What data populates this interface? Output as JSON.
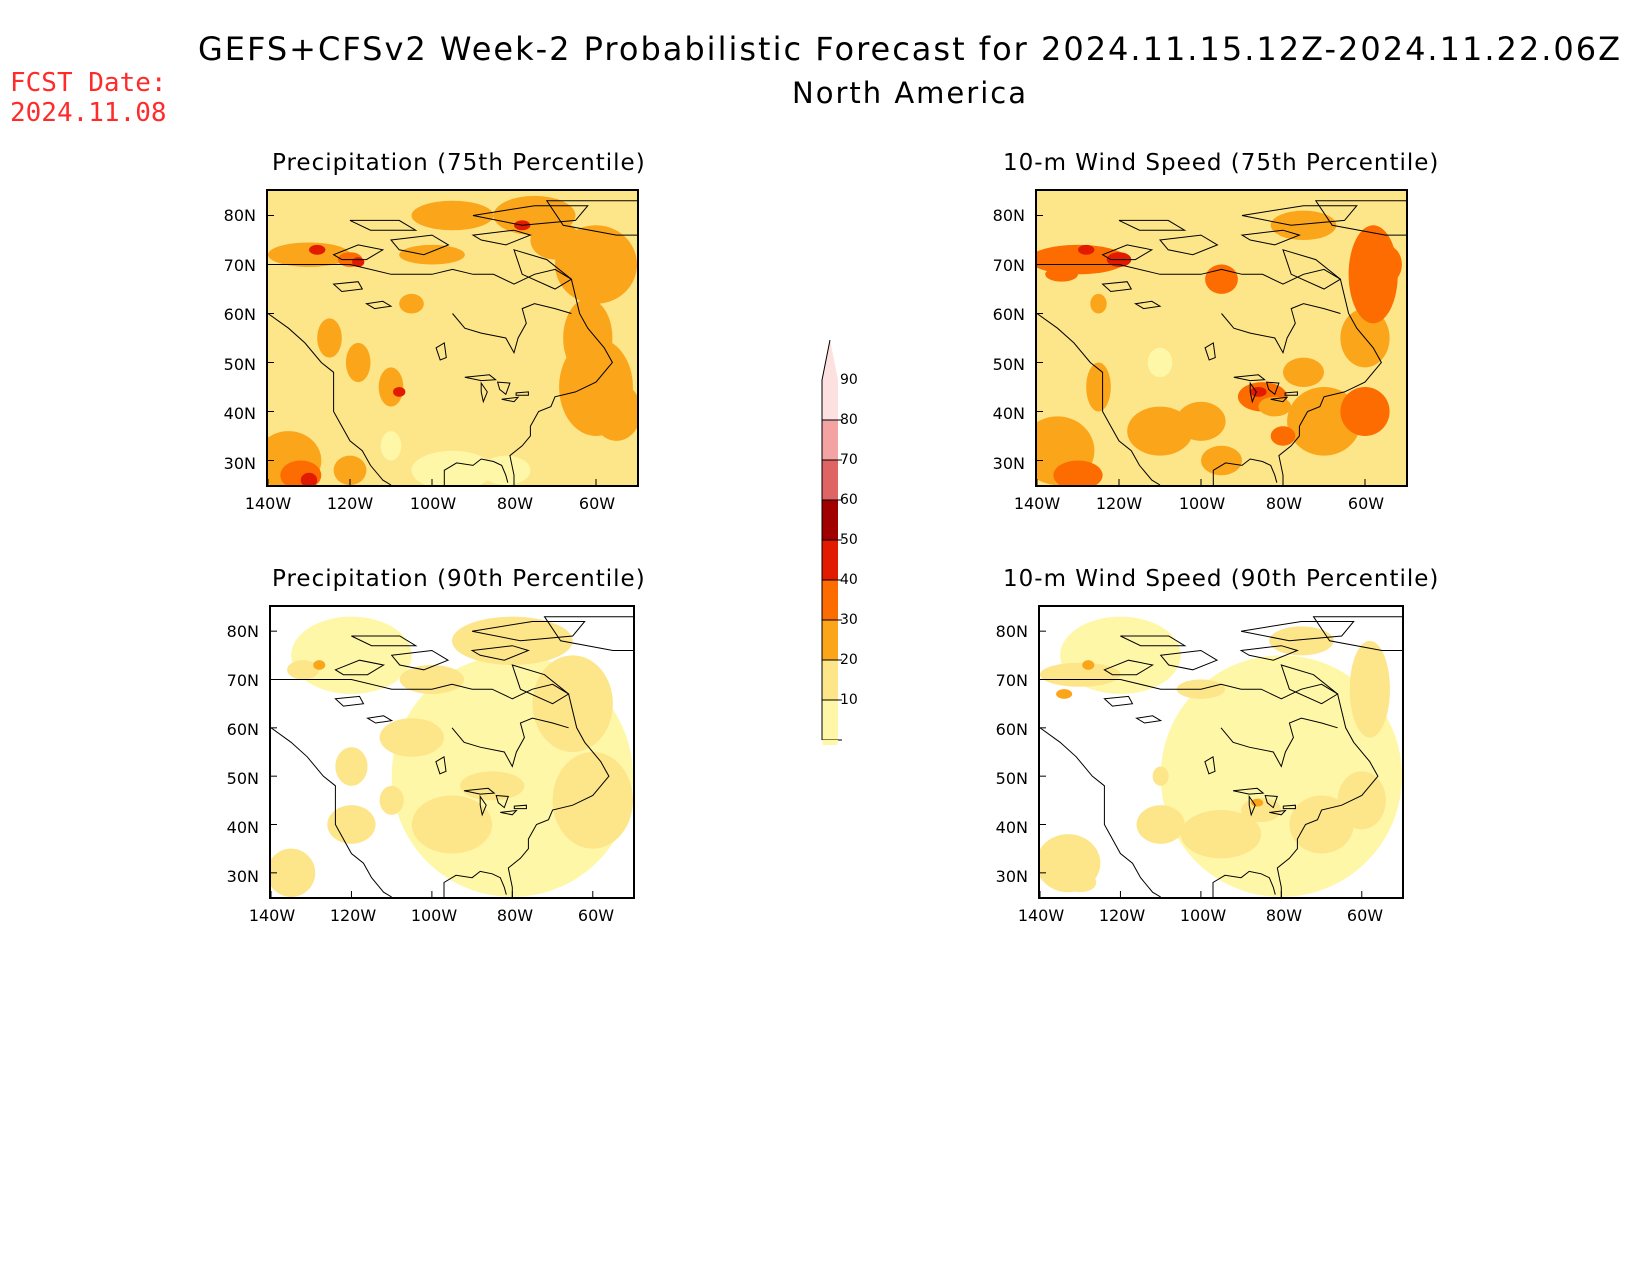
{
  "header": {
    "title": "GEFS+CFSv2 Week-2 Probabilistic Forecast for 2024.11.15.12Z-2024.11.22.06Z",
    "subtitle": "North America",
    "fcst_label": "FCST Date:",
    "fcst_date": "2024.11.08"
  },
  "panels": [
    {
      "id": "precip75",
      "title": "Precipitation (75th Percentile)"
    },
    {
      "id": "wind75",
      "title": "10-m Wind Speed (75th Percentile)"
    },
    {
      "id": "precip90",
      "title": "Precipitation (90th Percentile)"
    },
    {
      "id": "wind90",
      "title": "10-m Wind Speed (90th Percentile)"
    }
  ],
  "axes": {
    "lat_labels": [
      "80N",
      "70N",
      "60N",
      "50N",
      "40N",
      "30N"
    ],
    "lon_labels": [
      "140W",
      "120W",
      "100W",
      "80W",
      "60W"
    ]
  },
  "colorbar": {
    "levels": [
      "10",
      "20",
      "30",
      "40",
      "50",
      "60",
      "70",
      "80",
      "90"
    ],
    "colors": [
      "#fff7a8",
      "#fde58a",
      "#fba51b",
      "#fd6c00",
      "#e21b00",
      "#a00000",
      "#df6464",
      "#f4a3a3",
      "#fde0e0"
    ]
  }
}
